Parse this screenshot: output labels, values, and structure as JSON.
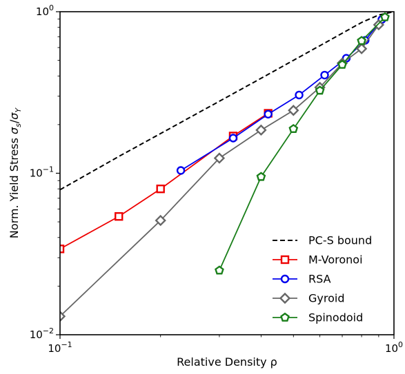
{
  "chart_data": {
    "type": "line",
    "xscale": "log",
    "yscale": "log",
    "xlim": [
      0.1,
      1.0
    ],
    "ylim": [
      0.01,
      1.0
    ],
    "xlabel": "Relative Density ρ",
    "ylabel_main": "Norm. Yield Stress ",
    "ylabel_sigma": "σ",
    "ylabel_sub_s": "s",
    "ylabel_slash": "/",
    "ylabel_sub_y": "Y",
    "x_ticks": [
      {
        "value": 0.1,
        "base": "10",
        "exp": "−1"
      },
      {
        "value": 1.0,
        "base": "10",
        "exp": "0"
      }
    ],
    "y_ticks": [
      {
        "value": 0.01,
        "base": "10",
        "exp": "−2"
      },
      {
        "value": 0.1,
        "base": "10",
        "exp": "−1"
      },
      {
        "value": 1.0,
        "base": "10",
        "exp": "0"
      }
    ],
    "grid": false,
    "legend_position": "lower-right",
    "series": [
      {
        "name": "PC-S bound",
        "color": "#000000",
        "style": "dashed",
        "marker": "none",
        "x": [
          0.1,
          0.15,
          0.2,
          0.3,
          0.4,
          0.5,
          0.6,
          0.7,
          0.8,
          0.9,
          1.0
        ],
        "y": [
          0.079,
          0.127,
          0.176,
          0.279,
          0.387,
          0.5,
          0.616,
          0.736,
          0.858,
          0.954,
          1.0
        ]
      },
      {
        "name": "M-Voronoi",
        "color": "#ee0000",
        "style": "solid",
        "marker": "square",
        "x": [
          0.1,
          0.15,
          0.2,
          0.33,
          0.42
        ],
        "y": [
          0.034,
          0.054,
          0.08,
          0.17,
          0.235
        ]
      },
      {
        "name": "RSA",
        "color": "#0000ee",
        "style": "solid",
        "marker": "circle",
        "x": [
          0.23,
          0.33,
          0.42,
          0.52,
          0.62,
          0.72,
          0.82,
          0.92
        ],
        "y": [
          0.104,
          0.165,
          0.232,
          0.305,
          0.405,
          0.515,
          0.665,
          0.895
        ]
      },
      {
        "name": "Gyroid",
        "color": "#666666",
        "style": "solid",
        "marker": "diamond",
        "x": [
          0.1,
          0.2,
          0.3,
          0.4,
          0.5,
          0.6,
          0.7,
          0.8,
          0.9
        ],
        "y": [
          0.013,
          0.051,
          0.124,
          0.185,
          0.245,
          0.34,
          0.48,
          0.59,
          0.83
        ]
      },
      {
        "name": "Spinodoid",
        "color": "#1a7f1a",
        "style": "solid",
        "marker": "pentagon",
        "x": [
          0.3,
          0.4,
          0.5,
          0.6,
          0.7,
          0.8,
          0.94
        ],
        "y": [
          0.025,
          0.095,
          0.188,
          0.325,
          0.47,
          0.66,
          0.925
        ]
      }
    ]
  }
}
